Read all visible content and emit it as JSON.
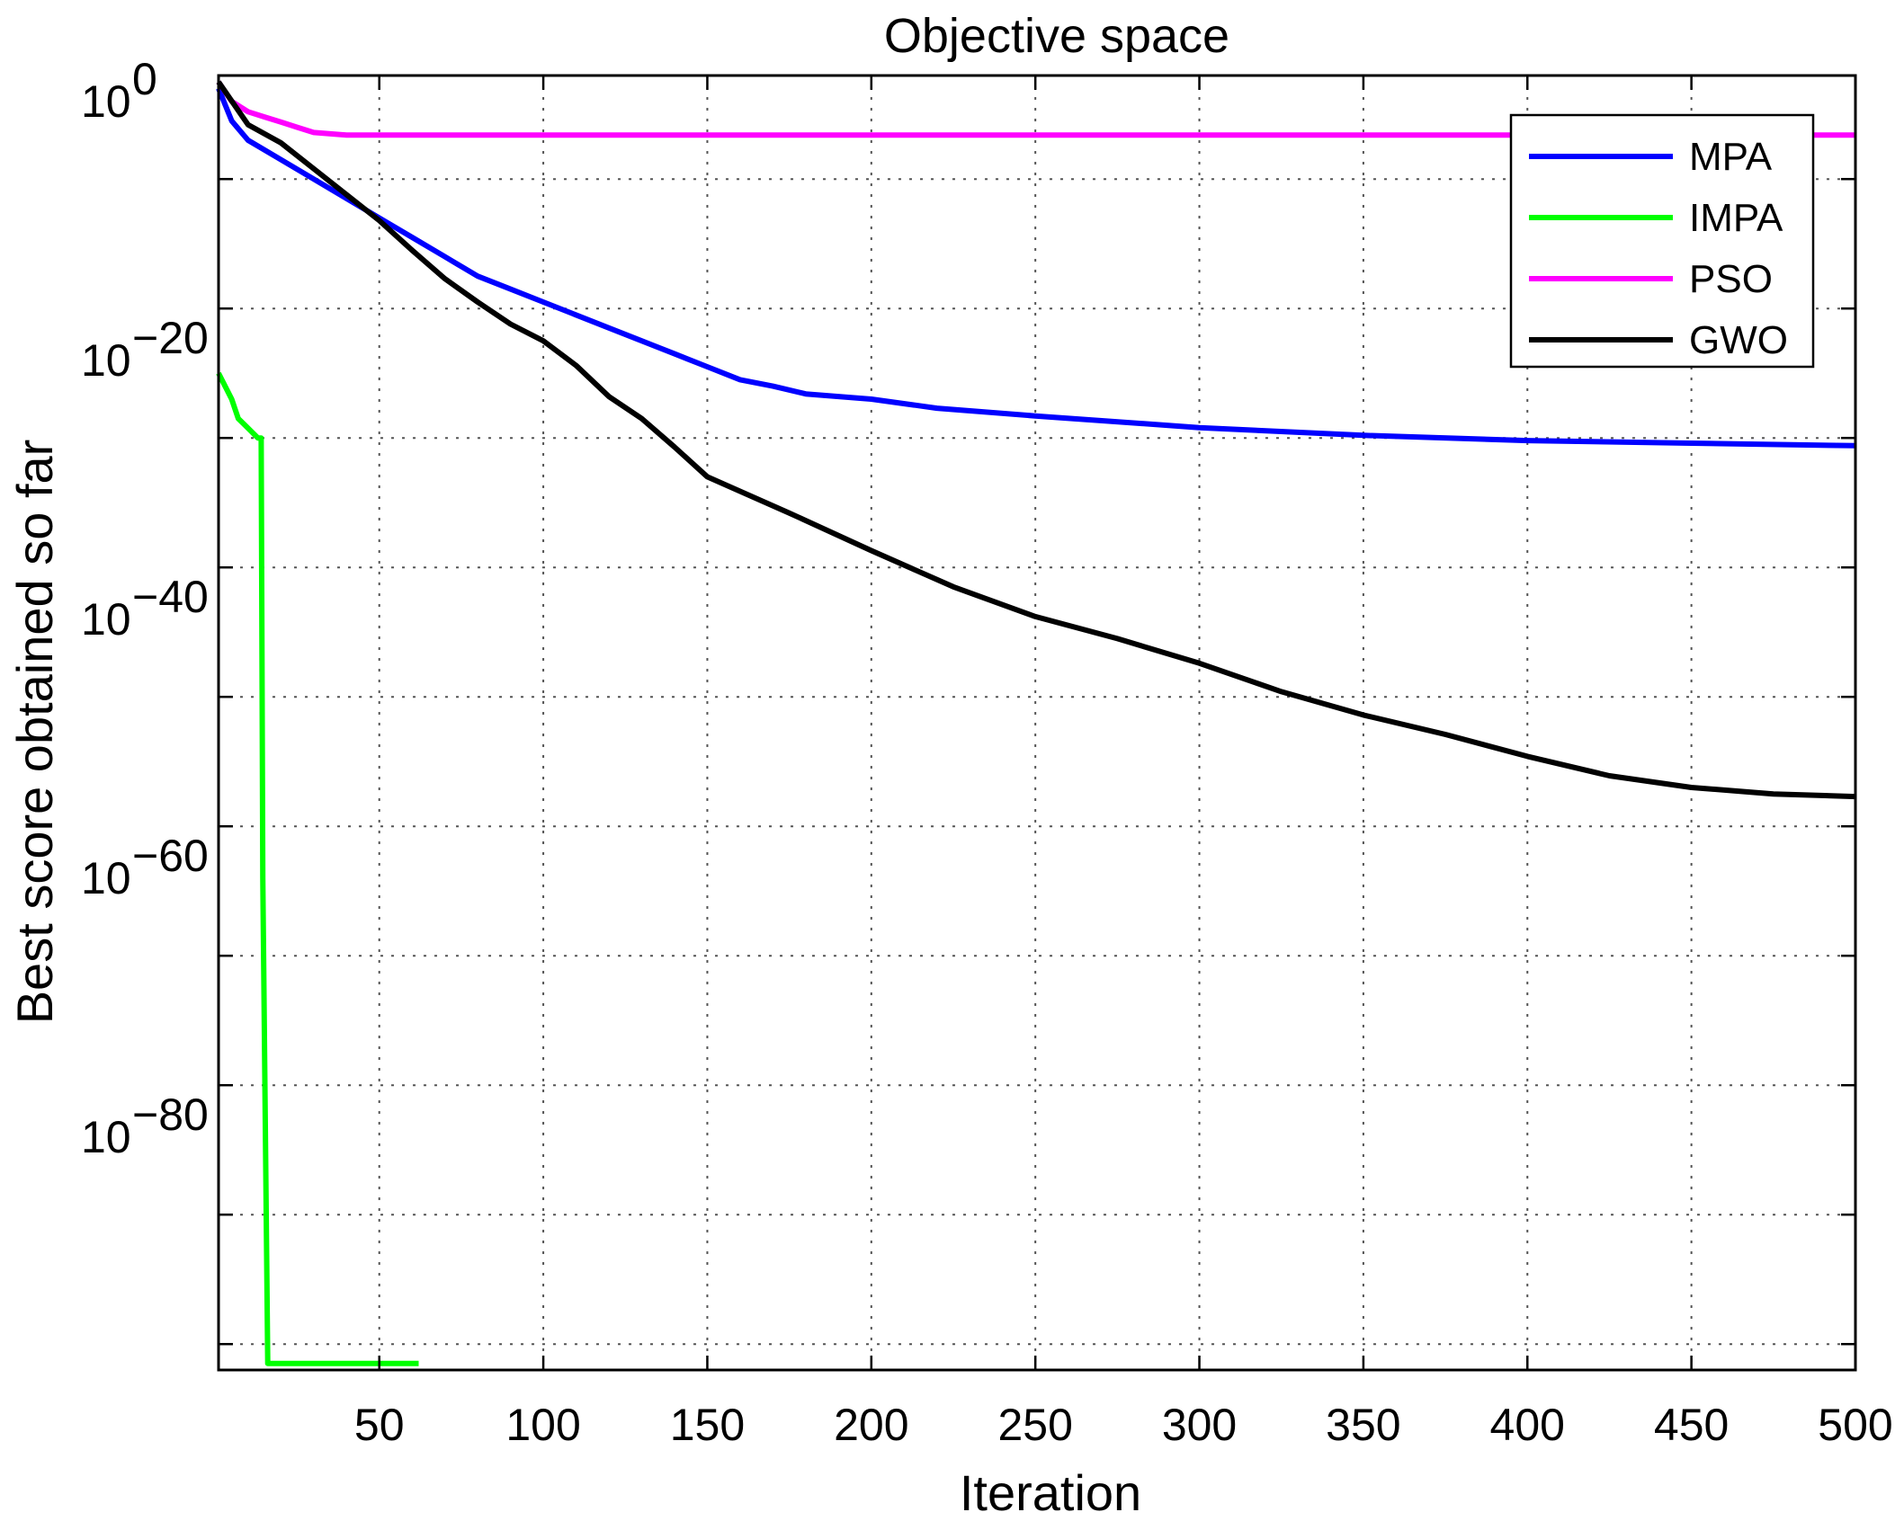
{
  "chart_data": {
    "type": "line",
    "title": "Objective space",
    "xlabel": "Iteration",
    "ylabel": "Best score obtained so far",
    "xlim": [
      1,
      500
    ],
    "ylim_log10": [
      -98,
      2
    ],
    "yscale": "log",
    "grid": true,
    "legend_position": "top-right",
    "x_ticks": [
      50,
      100,
      150,
      200,
      250,
      300,
      350,
      400,
      450,
      500
    ],
    "y_ticks": [
      {
        "base": "10",
        "exp": "0",
        "value_log10": 0
      },
      {
        "base": "10",
        "exp": "−20",
        "value_log10": -20
      },
      {
        "base": "10",
        "exp": "−40",
        "value_log10": -40
      },
      {
        "base": "10",
        "exp": "−60",
        "value_log10": -60
      },
      {
        "base": "10",
        "exp": "−80",
        "value_log10": -80
      }
    ],
    "series": [
      {
        "name": "MPA",
        "color": "#0000ff",
        "x": [
          1,
          5,
          10,
          20,
          30,
          40,
          50,
          60,
          70,
          80,
          90,
          100,
          110,
          120,
          130,
          140,
          150,
          160,
          170,
          180,
          200,
          220,
          250,
          300,
          350,
          400,
          450,
          500
        ],
        "log10_y": [
          1,
          -1.5,
          -3,
          -4.5,
          -6,
          -7.5,
          -9,
          -10.5,
          -12,
          -13.5,
          -14.5,
          -15.5,
          -16.5,
          -17.5,
          -18.5,
          -19.5,
          -20.5,
          -21.5,
          -22,
          -22.6,
          -23,
          -23.7,
          -24.3,
          -25.2,
          -25.8,
          -26.2,
          -26.4,
          -26.6
        ]
      },
      {
        "name": "IMPA",
        "color": "#00ff00",
        "x": [
          1,
          3,
          5,
          7,
          9,
          11,
          13,
          14,
          14.5,
          16,
          30,
          45,
          62
        ],
        "log10_y": [
          -21,
          -22,
          -23,
          -24.5,
          -25,
          -25.5,
          -26,
          -26,
          -60,
          -97.5,
          -97.5,
          -97.5,
          -97.5
        ]
      },
      {
        "name": "PSO",
        "color": "#ff00ff",
        "x": [
          1,
          5,
          10,
          15,
          20,
          25,
          30,
          40,
          100,
          200,
          300,
          400,
          500
        ],
        "log10_y": [
          1.5,
          0,
          -0.8,
          -1.2,
          -1.6,
          -2,
          -2.4,
          -2.6,
          -2.6,
          -2.6,
          -2.6,
          -2.6,
          -2.6
        ]
      },
      {
        "name": "GWO",
        "color": "#000000",
        "x": [
          1,
          10,
          20,
          30,
          40,
          50,
          60,
          70,
          80,
          90,
          100,
          110,
          120,
          130,
          140,
          150,
          175,
          200,
          225,
          250,
          275,
          300,
          325,
          350,
          375,
          400,
          425,
          450,
          475,
          500
        ],
        "log10_y": [
          1.5,
          -1.8,
          -3.2,
          -5.2,
          -7.2,
          -9.2,
          -11.5,
          -13.7,
          -15.5,
          -17.2,
          -18.5,
          -20.4,
          -22.8,
          -24.5,
          -26.7,
          -29,
          -31.8,
          -34.7,
          -37.5,
          -39.8,
          -41.5,
          -43.4,
          -45.6,
          -47.4,
          -48.9,
          -50.6,
          -52.1,
          -53.0,
          -53.5,
          -53.7
        ]
      }
    ]
  }
}
